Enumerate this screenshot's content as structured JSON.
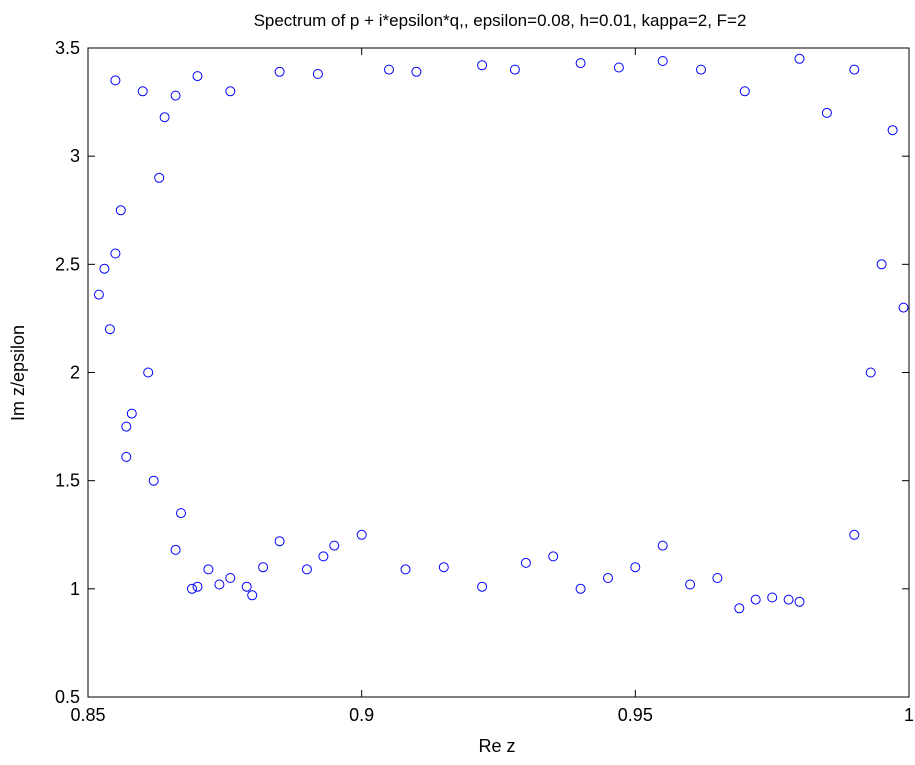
{
  "chart_data": {
    "type": "scatter",
    "title": "Spectrum of p + i*epsilon*q,, epsilon=0.08, h=0.01, kappa=2, F=2",
    "xlabel": "Re z",
    "ylabel": "Im z/epsilon",
    "xlim": [
      0.85,
      1.0
    ],
    "ylim": [
      0.5,
      3.5
    ],
    "xticks": [
      "0.85",
      "0.9",
      "0.95",
      "1"
    ],
    "yticks": [
      "0.5",
      "1",
      "1.5",
      "2",
      "2.5",
      "3",
      "3.5"
    ],
    "grid": false,
    "legend": "none",
    "marker": "circle-open",
    "color": "#0000ff",
    "series": [
      {
        "values": [
          [
            0.852,
            2.36
          ],
          [
            0.853,
            2.48
          ],
          [
            0.854,
            2.2
          ],
          [
            0.855,
            2.55
          ],
          [
            0.855,
            3.35
          ],
          [
            0.856,
            2.75
          ],
          [
            0.857,
            1.61
          ],
          [
            0.857,
            1.75
          ],
          [
            0.858,
            1.81
          ],
          [
            0.86,
            3.3
          ],
          [
            0.861,
            2.0
          ],
          [
            0.862,
            1.5
          ],
          [
            0.863,
            2.9
          ],
          [
            0.864,
            3.18
          ],
          [
            0.866,
            1.18
          ],
          [
            0.867,
            1.35
          ],
          [
            0.869,
            1.0
          ],
          [
            0.87,
            1.01
          ],
          [
            0.87,
            3.37
          ],
          [
            0.872,
            1.09
          ],
          [
            0.874,
            1.02
          ],
          [
            0.876,
            1.05
          ],
          [
            0.879,
            1.01
          ],
          [
            0.88,
            0.97
          ],
          [
            0.882,
            1.1
          ],
          [
            0.885,
            1.22
          ],
          [
            0.89,
            1.09
          ],
          [
            0.893,
            1.15
          ],
          [
            0.895,
            1.2
          ],
          [
            0.9,
            1.25
          ],
          [
            0.908,
            1.09
          ],
          [
            0.915,
            1.1
          ],
          [
            0.922,
            1.01
          ],
          [
            0.93,
            1.12
          ],
          [
            0.935,
            1.15
          ],
          [
            0.94,
            1.0
          ],
          [
            0.945,
            1.05
          ],
          [
            0.95,
            1.1
          ],
          [
            0.955,
            1.2
          ],
          [
            0.96,
            1.02
          ],
          [
            0.965,
            1.05
          ],
          [
            0.969,
            0.91
          ],
          [
            0.972,
            0.95
          ],
          [
            0.975,
            0.96
          ],
          [
            0.978,
            0.95
          ],
          [
            0.98,
            0.94
          ],
          [
            0.99,
            1.25
          ],
          [
            0.995,
            2.5
          ],
          [
            0.997,
            3.12
          ],
          [
            0.999,
            2.3
          ],
          [
            0.993,
            2.0
          ],
          [
            0.99,
            3.4
          ],
          [
            0.985,
            3.2
          ],
          [
            0.98,
            3.45
          ],
          [
            0.97,
            3.3
          ],
          [
            0.962,
            3.4
          ],
          [
            0.955,
            3.44
          ],
          [
            0.947,
            3.41
          ],
          [
            0.94,
            3.43
          ],
          [
            0.928,
            3.4
          ],
          [
            0.922,
            3.42
          ],
          [
            0.91,
            3.39
          ],
          [
            0.905,
            3.4
          ],
          [
            0.892,
            3.38
          ],
          [
            0.885,
            3.39
          ],
          [
            0.876,
            3.3
          ],
          [
            0.866,
            3.28
          ]
        ]
      }
    ]
  }
}
